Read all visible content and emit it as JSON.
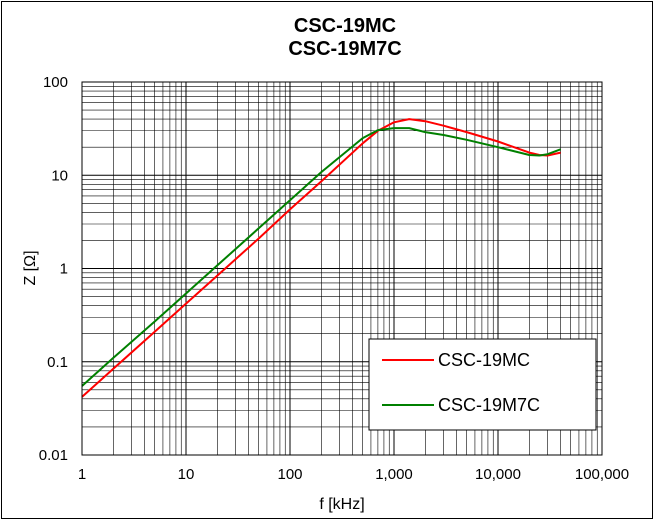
{
  "chart_data": {
    "type": "line",
    "title": [
      "CSC-19MC",
      "CSC-19M7C"
    ],
    "xlabel": "f [kHz]",
    "ylabel": "Z [Ω]",
    "xscale": "log",
    "yscale": "log",
    "xlim": [
      1,
      100000
    ],
    "ylim": [
      0.01,
      100
    ],
    "xticks": [
      {
        "value": 1,
        "label": "1"
      },
      {
        "value": 10,
        "label": "10"
      },
      {
        "value": 100,
        "label": "100"
      },
      {
        "value": 1000,
        "label": "1,000"
      },
      {
        "value": 10000,
        "label": "10,000"
      },
      {
        "value": 100000,
        "label": "100,000"
      }
    ],
    "yticks": [
      {
        "value": 0.01,
        "label": "0.01"
      },
      {
        "value": 0.1,
        "label": "0.1"
      },
      {
        "value": 1,
        "label": "1"
      },
      {
        "value": 10,
        "label": "10"
      },
      {
        "value": 100,
        "label": "100"
      }
    ],
    "grid": true,
    "legend_position": "bottom-right",
    "series": [
      {
        "name": "CSC-19MC",
        "color": "#ff0000",
        "x": [
          1,
          2,
          5,
          10,
          20,
          50,
          100,
          200,
          500,
          700,
          1000,
          1400,
          2000,
          3000,
          5000,
          10000,
          20000,
          25000,
          30000,
          40000
        ],
        "y": [
          0.042,
          0.084,
          0.21,
          0.42,
          0.84,
          2.1,
          4.3,
          8.6,
          22,
          30,
          37,
          40,
          38,
          34,
          29,
          23,
          17.5,
          16.5,
          16.3,
          17.5
        ]
      },
      {
        "name": "CSC-19M7C",
        "color": "#008000",
        "x": [
          1,
          2,
          5,
          10,
          20,
          50,
          100,
          200,
          500,
          700,
          1000,
          1400,
          2000,
          3000,
          5000,
          10000,
          20000,
          25000,
          30000,
          40000
        ],
        "y": [
          0.055,
          0.11,
          0.27,
          0.54,
          1.08,
          2.7,
          5.4,
          10.8,
          25,
          30.5,
          32,
          32,
          29,
          27,
          24,
          20,
          16.5,
          16.3,
          16.8,
          19
        ]
      }
    ]
  }
}
